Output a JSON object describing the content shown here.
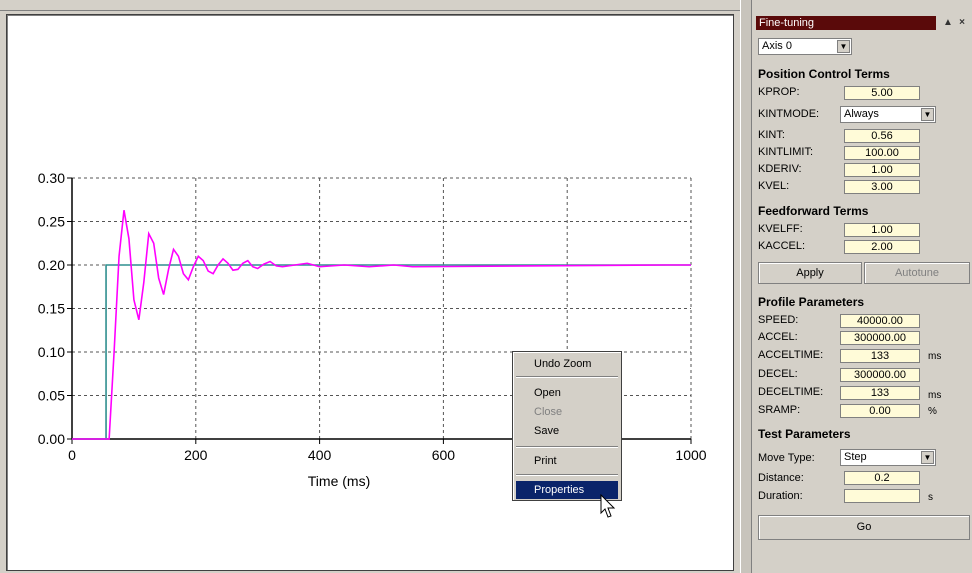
{
  "chart_data": {
    "type": "line",
    "xlabel": "Time (ms)",
    "ylabel": "",
    "xlim": [
      0,
      1000
    ],
    "ylim": [
      0,
      0.3
    ],
    "x_ticks": [
      "0",
      "200",
      "400",
      "600",
      "800",
      "1000"
    ],
    "y_ticks": [
      "0.00",
      "0.05",
      "0.10",
      "0.15",
      "0.20",
      "0.25",
      "0.30"
    ],
    "grid": true,
    "series": [
      {
        "color": "#2f8f8f",
        "x": [
          0,
          55,
          55,
          1000
        ],
        "y": [
          0,
          0,
          0.2,
          0.2
        ]
      },
      {
        "color": "#ff00ff",
        "x": [
          0,
          60,
          68,
          76,
          84,
          92,
          100,
          108,
          116,
          124,
          132,
          140,
          148,
          156,
          164,
          172,
          180,
          188,
          196,
          204,
          212,
          220,
          228,
          236,
          244,
          252,
          260,
          268,
          276,
          284,
          292,
          300,
          310,
          320,
          330,
          340,
          360,
          380,
          400,
          440,
          480,
          520,
          550,
          960,
          1000
        ],
        "y": [
          0,
          0,
          0.1,
          0.21,
          0.263,
          0.23,
          0.16,
          0.137,
          0.18,
          0.236,
          0.225,
          0.185,
          0.166,
          0.195,
          0.218,
          0.21,
          0.19,
          0.183,
          0.198,
          0.21,
          0.205,
          0.193,
          0.19,
          0.2,
          0.207,
          0.202,
          0.194,
          0.195,
          0.202,
          0.205,
          0.198,
          0.196,
          0.201,
          0.204,
          0.199,
          0.198,
          0.2,
          0.202,
          0.198,
          0.2,
          0.198,
          0.2,
          0.198,
          0.2,
          0.2
        ]
      }
    ]
  },
  "context_menu": {
    "items": [
      {
        "label": "Undo Zoom",
        "enabled": true
      },
      {
        "label": "Open",
        "enabled": true
      },
      {
        "label": "Close",
        "enabled": false
      },
      {
        "label": "Save",
        "enabled": true
      },
      {
        "label": "Print",
        "enabled": true
      },
      {
        "label": "Properties",
        "enabled": true,
        "selected": true
      }
    ]
  },
  "panel": {
    "title": "Fine-tuning",
    "axis_select": "Axis 0",
    "position_control": {
      "heading": "Position Control Terms",
      "kprop_label": "KPROP:",
      "kprop": "5.00",
      "kintmode_label": "KINTMODE:",
      "kintmode": "Always",
      "kint_label": "KINT:",
      "kint": "0.56",
      "kintlimit_label": "KINTLIMIT:",
      "kintlimit": "100.00",
      "kderiv_label": "KDERIV:",
      "kderiv": "1.00",
      "kvel_label": "KVEL:",
      "kvel": "3.00"
    },
    "feedforward": {
      "heading": "Feedforward Terms",
      "kvelff_label": "KVELFF:",
      "kvelff": "1.00",
      "kaccel_label": "KACCEL:",
      "kaccel": "2.00"
    },
    "apply_label": "Apply",
    "autotune_label": "Autotune",
    "profile": {
      "heading": "Profile Parameters",
      "speed_label": "SPEED:",
      "speed": "40000.00",
      "accel_label": "ACCEL:",
      "accel": "300000.00",
      "acceltime_label": "ACCELTIME:",
      "acceltime": "133",
      "acceltime_unit": "ms",
      "decel_label": "DECEL:",
      "decel": "300000.00",
      "deceltime_label": "DECELTIME:",
      "deceltime": "133",
      "deceltime_unit": "ms",
      "sramp_label": "SRAMP:",
      "sramp": "0.00",
      "sramp_unit": "%"
    },
    "test": {
      "heading": "Test Parameters",
      "move_type_label": "Move Type:",
      "move_type": "Step",
      "distance_label": "Distance:",
      "distance": "0.2",
      "duration_label": "Duration:",
      "duration": "",
      "duration_unit": "s"
    },
    "go_label": "Go"
  }
}
